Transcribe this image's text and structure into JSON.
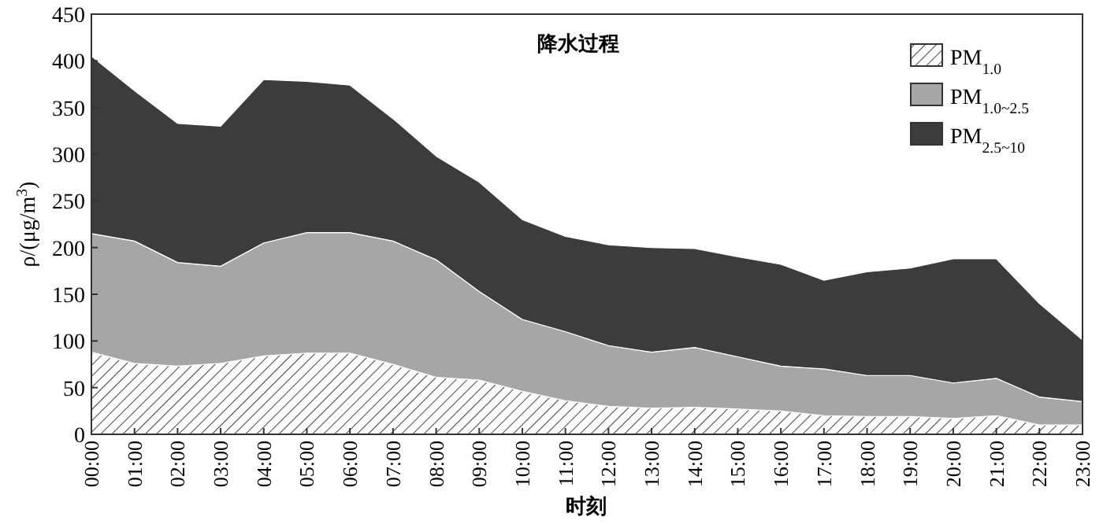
{
  "chart_data": {
    "type": "area",
    "stacked": true,
    "title": "降水过程",
    "xlabel": "时刻",
    "ylabel": "ρ/(μg/m$^{3}$)",
    "categories": [
      "00:00",
      "01:00",
      "02:00",
      "03:00",
      "04:00",
      "05:00",
      "06:00",
      "07:00",
      "08:00",
      "09:00",
      "10:00",
      "11:00",
      "12:00",
      "13:00",
      "14:00",
      "15:00",
      "16:00",
      "17:00",
      "18:00",
      "19:00",
      "20:00",
      "21:00",
      "22:00",
      "23:00"
    ],
    "series": [
      {
        "name": "PM$_{1.0}$",
        "color": "#ffffff",
        "values": [
          88,
          76,
          73,
          76,
          84,
          87,
          87,
          75,
          61,
          58,
          46,
          36,
          30,
          28,
          29,
          27,
          25,
          20,
          19,
          19,
          17,
          20,
          10,
          10
        ]
      },
      {
        "name": "PM$_{1.0~2.5}$",
        "color": "#a6a6a6",
        "values": [
          127,
          131,
          111,
          104,
          121,
          129,
          129,
          132,
          126,
          95,
          77,
          74,
          65,
          60,
          64,
          56,
          48,
          50,
          44,
          44,
          38,
          40,
          30,
          25
        ]
      },
      {
        "name": "PM$_{2.5~10}$",
        "color": "#3c3c3c",
        "values": [
          190,
          161,
          149,
          150,
          175,
          162,
          158,
          131,
          111,
          117,
          107,
          102,
          108,
          112,
          106,
          107,
          109,
          95,
          111,
          115,
          133,
          128,
          100,
          66
        ]
      }
    ],
    "ylim": [
      0,
      450
    ],
    "yticks": [
      0,
      50,
      100,
      150,
      200,
      250,
      300,
      350,
      400,
      450
    ],
    "legend": "top right",
    "grid": false
  }
}
